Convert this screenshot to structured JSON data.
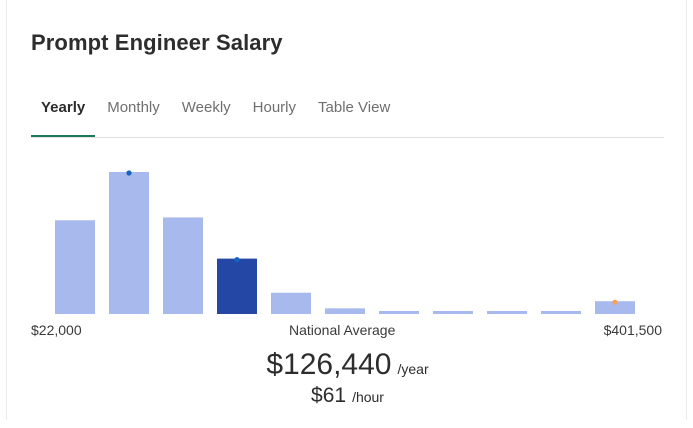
{
  "title": "Prompt Engineer Salary",
  "tabs": [
    {
      "label": "Yearly",
      "active": true
    },
    {
      "label": "Monthly",
      "active": false
    },
    {
      "label": "Weekly",
      "active": false
    },
    {
      "label": "Hourly",
      "active": false
    },
    {
      "label": "Table View",
      "active": false
    }
  ],
  "range": {
    "min_label": "$22,000",
    "max_label": "$401,500",
    "average_label": "National Average"
  },
  "average": {
    "yearly_value": "$126,440",
    "yearly_unit": "/year",
    "hourly_value": "$61",
    "hourly_unit": "/hour"
  },
  "colors": {
    "bar": "#a8b9ee",
    "bar_highlight": "#2447a6",
    "dot_blue": "#1565c0",
    "dot_orange": "#f4a259",
    "tab_underline": "#1f7a5a"
  },
  "chart_data": {
    "type": "bar",
    "values": [
      0.66,
      1.0,
      0.68,
      0.39,
      0.15,
      0.04,
      0.02,
      0.02,
      0.02,
      0.02,
      0.09
    ],
    "highlight_index": 3,
    "markers": [
      {
        "index": 1,
        "color": "dot_blue"
      },
      {
        "index": 3,
        "color": "dot_blue"
      },
      {
        "index": 10,
        "color": "dot_orange"
      }
    ],
    "x_min_label": "$22,000",
    "x_max_label": "$401,500",
    "ylim": [
      0,
      1
    ]
  }
}
